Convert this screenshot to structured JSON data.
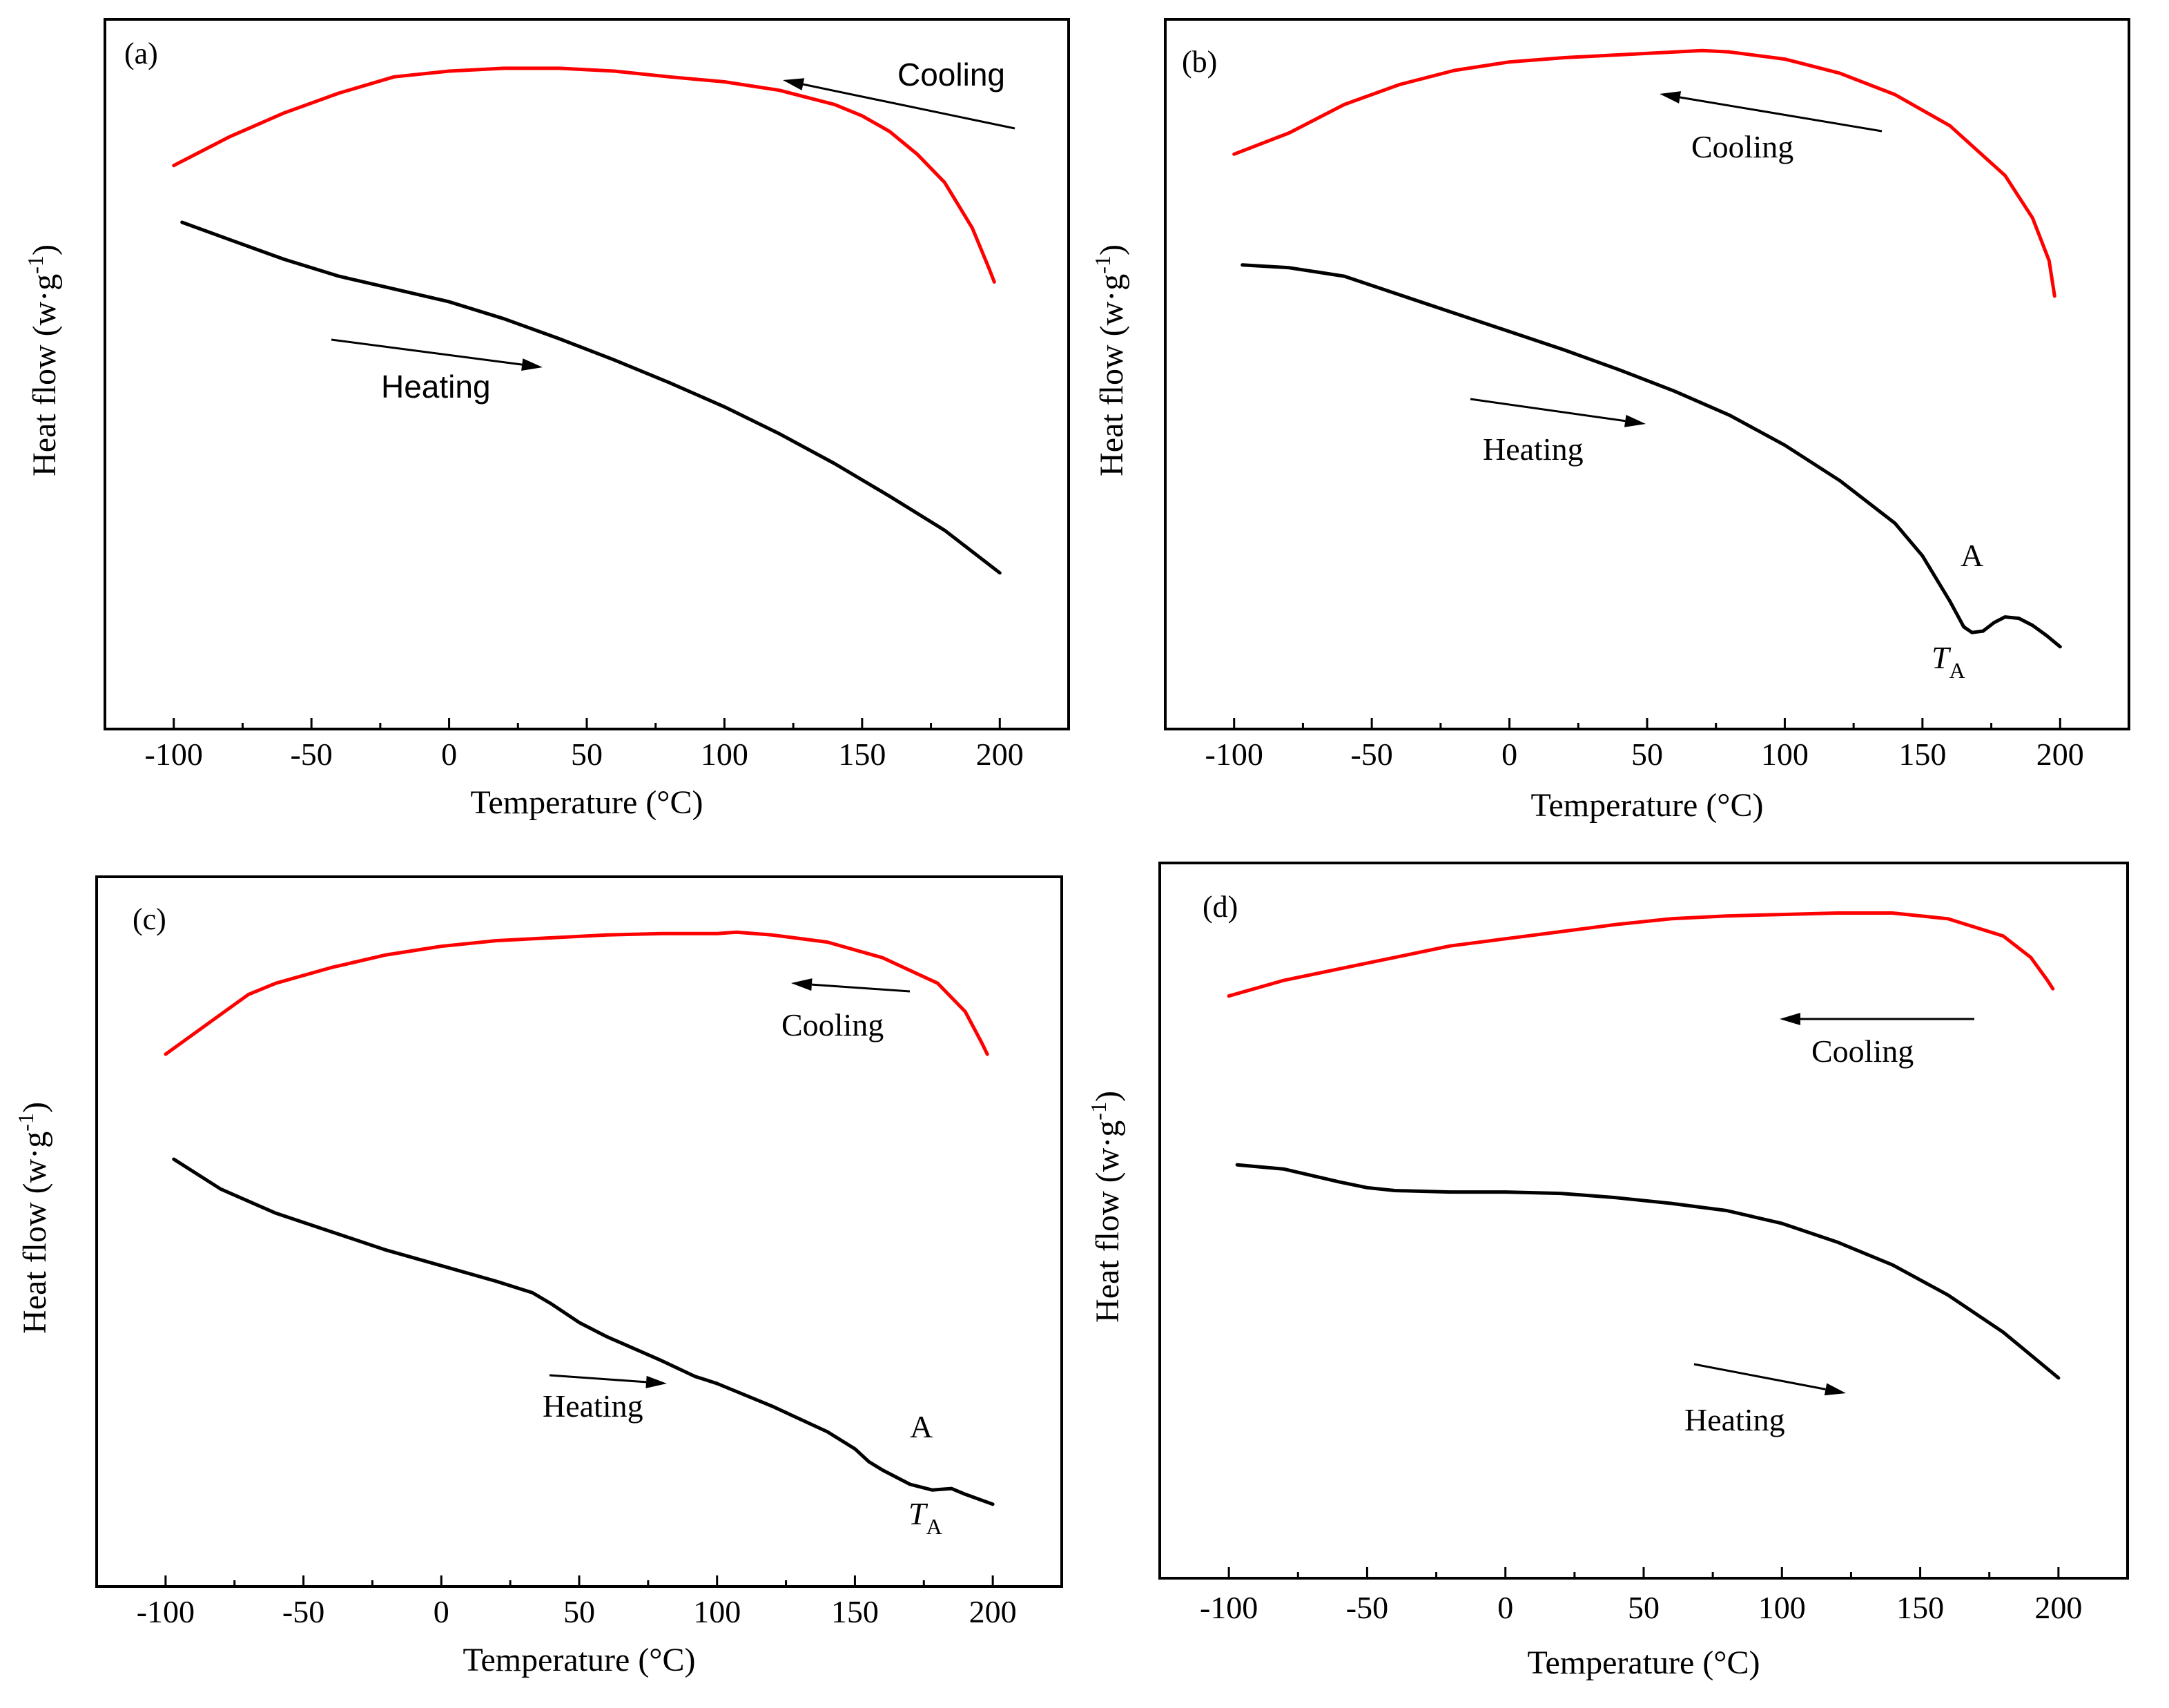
{
  "figure": {
    "background": "#ffffff"
  },
  "chart_data": [
    {
      "id": "a",
      "type": "line",
      "panel_label": "(a)",
      "xlabel": "Temperature (°C)",
      "ylabel": "Heat flow (w·g",
      "ylabel_sup": "-1",
      "ylabel_end": ")",
      "xlim": [
        -125,
        225
      ],
      "ylim": [
        0,
        100
      ],
      "xticks": [
        -100,
        -50,
        0,
        50,
        100,
        150,
        200
      ],
      "xtick_labels": [
        "-100",
        "-50",
        "0",
        "50",
        "100",
        "150",
        "200"
      ],
      "label_font": "sans",
      "series": [
        {
          "name": "Cooling",
          "color": "#ff0000",
          "x": [
            -100,
            -80,
            -60,
            -40,
            -20,
            0,
            20,
            40,
            60,
            80,
            100,
            120,
            140,
            150,
            160,
            170,
            180,
            190,
            196,
            198
          ],
          "y": [
            79.4,
            83.4,
            86.8,
            89.6,
            91.9,
            92.7,
            93.1,
            93.1,
            92.7,
            91.9,
            91.2,
            90.0,
            88.0,
            86.4,
            84.2,
            81.0,
            77.0,
            70.6,
            65.0,
            63.0
          ]
        },
        {
          "name": "Heating",
          "color": "#000000",
          "x": [
            -97,
            -80,
            -60,
            -40,
            -20,
            0,
            20,
            40,
            60,
            80,
            100,
            120,
            140,
            160,
            180,
            200
          ],
          "y": [
            71.4,
            69.0,
            66.2,
            63.8,
            62.0,
            60.2,
            57.8,
            55.0,
            52.0,
            48.8,
            45.4,
            41.6,
            37.4,
            32.8,
            28.0,
            22.0
          ]
        }
      ],
      "annotations": [
        {
          "text": "Cooling",
          "series": "Cooling",
          "direction": "decreasing-x"
        },
        {
          "text": "Heating",
          "series": "Heating",
          "direction": "increasing-x"
        }
      ]
    },
    {
      "id": "b",
      "type": "line",
      "panel_label": "(b)",
      "xlabel": "Temperature (°C)",
      "ylabel": "Heat flow (w·g",
      "ylabel_sup": "-1",
      "ylabel_end": ")",
      "xlim": [
        -125,
        225
      ],
      "ylim": [
        0,
        100
      ],
      "xticks": [
        -100,
        -50,
        0,
        50,
        100,
        150,
        200
      ],
      "xtick_labels": [
        "-100",
        "-50",
        "0",
        "50",
        "100",
        "150",
        "200"
      ],
      "label_font": "serif",
      "series": [
        {
          "name": "Cooling",
          "color": "#ff0000",
          "x": [
            -100,
            -80,
            -60,
            -40,
            -20,
            0,
            20,
            40,
            60,
            70,
            80,
            100,
            120,
            140,
            160,
            180,
            190,
            196,
            198
          ],
          "y": [
            81.0,
            84.0,
            88.0,
            90.8,
            92.8,
            94.0,
            94.6,
            95.0,
            95.4,
            95.6,
            95.4,
            94.4,
            92.4,
            89.4,
            85.0,
            78.0,
            72.0,
            66.0,
            61.0
          ]
        },
        {
          "name": "Heating",
          "color": "#000000",
          "x": [
            -97,
            -80,
            -60,
            -40,
            -20,
            0,
            20,
            40,
            60,
            80,
            100,
            120,
            140,
            150,
            160,
            165,
            168,
            172,
            176,
            180,
            185,
            190,
            195,
            200
          ],
          "y": [
            65.4,
            65.0,
            63.8,
            61.2,
            58.6,
            56.0,
            53.4,
            50.6,
            47.6,
            44.2,
            40.0,
            35.0,
            29.0,
            24.4,
            18.0,
            14.4,
            13.6,
            13.8,
            15.0,
            15.8,
            15.6,
            14.6,
            13.2,
            11.6
          ]
        }
      ],
      "annotations": [
        {
          "text": "Cooling",
          "series": "Cooling",
          "direction": "decreasing-x"
        },
        {
          "text": "Heating",
          "series": "Heating",
          "direction": "increasing-x"
        },
        {
          "text": "A",
          "at_x": 170
        },
        {
          "text": "T",
          "subscript": "A",
          "at_x": 168
        }
      ]
    },
    {
      "id": "c",
      "type": "line",
      "panel_label": "(c)",
      "xlabel": "Temperature (°C)",
      "ylabel": "Heat flow (w·g",
      "ylabel_sup": "-1",
      "ylabel_end": ")",
      "xlim": [
        -125,
        225
      ],
      "ylim": [
        0,
        100
      ],
      "xticks": [
        -100,
        -50,
        0,
        50,
        100,
        150,
        200
      ],
      "xtick_labels": [
        "-100",
        "-50",
        "0",
        "50",
        "100",
        "150",
        "200"
      ],
      "label_font": "serif",
      "series": [
        {
          "name": "Cooling",
          "color": "#ff0000",
          "x": [
            -100,
            -80,
            -70,
            -60,
            -40,
            -20,
            0,
            20,
            40,
            60,
            80,
            100,
            107,
            120,
            140,
            160,
            180,
            190,
            196,
            198
          ],
          "y": [
            75.0,
            80.6,
            83.4,
            85.0,
            87.2,
            89.0,
            90.2,
            91.0,
            91.4,
            91.8,
            92.0,
            92.0,
            92.2,
            91.8,
            90.8,
            88.6,
            85.0,
            81.0,
            76.6,
            75.0
          ]
        },
        {
          "name": "Heating",
          "color": "#000000",
          "x": [
            -97,
            -80,
            -60,
            -40,
            -20,
            0,
            20,
            33,
            40,
            50,
            60,
            80,
            92,
            100,
            120,
            130,
            140,
            150,
            155,
            160,
            170,
            178,
            185,
            190,
            200
          ],
          "y": [
            60.2,
            56.0,
            52.6,
            50.0,
            47.4,
            45.2,
            43.0,
            41.4,
            39.8,
            37.2,
            35.2,
            31.8,
            29.6,
            28.6,
            25.4,
            23.6,
            21.8,
            19.4,
            17.6,
            16.4,
            14.4,
            13.6,
            13.8,
            13.0,
            11.6
          ]
        }
      ],
      "annotations": [
        {
          "text": "Cooling",
          "series": "Cooling",
          "direction": "decreasing-x"
        },
        {
          "text": "Heating",
          "series": "Heating",
          "direction": "increasing-x"
        },
        {
          "text": "A",
          "at_x": 173
        },
        {
          "text": "T",
          "subscript": "A",
          "at_x": 176
        }
      ]
    },
    {
      "id": "d",
      "type": "line",
      "panel_label": "(d)",
      "xlabel": "Temperature (°C)",
      "ylabel": "Heat flow (w·g",
      "ylabel_sup": "-1",
      "ylabel_end": ")",
      "xlim": [
        -125,
        225
      ],
      "ylim": [
        0,
        100
      ],
      "xticks": [
        -100,
        -50,
        0,
        50,
        100,
        150,
        200
      ],
      "xtick_labels": [
        "-100",
        "-50",
        "0",
        "50",
        "100",
        "150",
        "200"
      ],
      "label_font": "serif",
      "series": [
        {
          "name": "Cooling",
          "color": "#ff0000",
          "x": [
            -100,
            -80,
            -60,
            -40,
            -20,
            0,
            20,
            40,
            60,
            80,
            100,
            120,
            140,
            160,
            180,
            190,
            196,
            198
          ],
          "y": [
            81.4,
            83.6,
            85.2,
            86.8,
            88.4,
            89.4,
            90.4,
            91.4,
            92.2,
            92.6,
            92.8,
            93.0,
            93.0,
            92.2,
            89.8,
            86.8,
            83.6,
            82.4
          ]
        },
        {
          "name": "Heating",
          "color": "#000000",
          "x": [
            -97,
            -80,
            -60,
            -50,
            -40,
            -20,
            0,
            20,
            40,
            60,
            80,
            100,
            120,
            140,
            160,
            180,
            200
          ],
          "y": [
            57.8,
            57.2,
            55.4,
            54.6,
            54.2,
            54.0,
            54.0,
            53.8,
            53.2,
            52.4,
            51.4,
            49.6,
            47.0,
            43.8,
            39.6,
            34.4,
            28.0
          ]
        }
      ],
      "annotations": [
        {
          "text": "Cooling",
          "series": "Cooling",
          "direction": "decreasing-x"
        },
        {
          "text": "Heating",
          "series": "Heating",
          "direction": "increasing-x"
        }
      ]
    }
  ]
}
